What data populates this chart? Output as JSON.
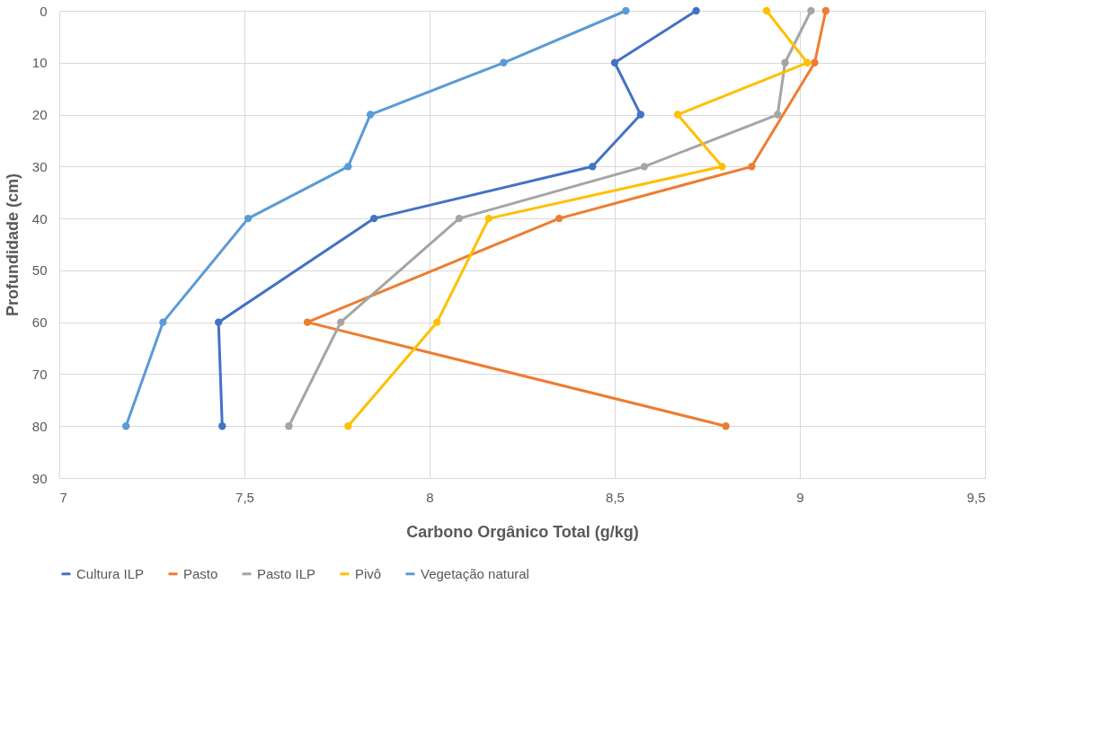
{
  "chart_data": {
    "type": "line",
    "xlabel": "Carbono Orgânico Total  (g/kg)",
    "ylabel": "Profundidade (cm)",
    "xlim": [
      7,
      9.5
    ],
    "xticks": [
      7,
      {
        "value": 7.5,
        "label": "7,5"
      },
      8,
      {
        "value": 8.5,
        "label": "8,5"
      },
      9,
      {
        "value": 9.5,
        "label": "9,5"
      }
    ],
    "ylim": [
      90,
      0
    ],
    "yticks": [
      0,
      10,
      20,
      30,
      40,
      50,
      60,
      70,
      80,
      90
    ],
    "grid": true,
    "legend": "bottom",
    "marker": "circle",
    "line_style": "solid",
    "series": [
      {
        "name": "Cultura ILP",
        "color": "#4472c4",
        "x": [
          8.72,
          8.5,
          8.57,
          8.44,
          7.85,
          7.43,
          7.44
        ],
        "values": [
          0,
          10,
          20,
          30,
          40,
          60,
          80
        ]
      },
      {
        "name": "Pasto",
        "color": "#ed7d31",
        "x": [
          9.07,
          9.04,
          null,
          8.87,
          8.35,
          7.67,
          8.8
        ],
        "values": [
          0,
          10,
          null,
          30,
          40,
          60,
          80
        ]
      },
      {
        "name": "Pasto ILP",
        "color": "#a5a5a5",
        "x": [
          9.03,
          8.96,
          8.94,
          8.58,
          8.08,
          7.76,
          7.62
        ],
        "values": [
          0,
          10,
          20,
          30,
          40,
          60,
          80
        ]
      },
      {
        "name": "Pivô",
        "color": "#ffc000",
        "x": [
          8.91,
          9.02,
          8.67,
          8.79,
          8.16,
          8.02,
          7.78
        ],
        "values": [
          0,
          10,
          20,
          30,
          40,
          60,
          80
        ]
      },
      {
        "name": "Vegetação natural",
        "color": "#5b9bd5",
        "x": [
          8.53,
          8.2,
          7.84,
          7.78,
          7.51,
          7.28,
          7.18
        ],
        "values": [
          0,
          10,
          20,
          30,
          40,
          60,
          80
        ]
      }
    ]
  }
}
